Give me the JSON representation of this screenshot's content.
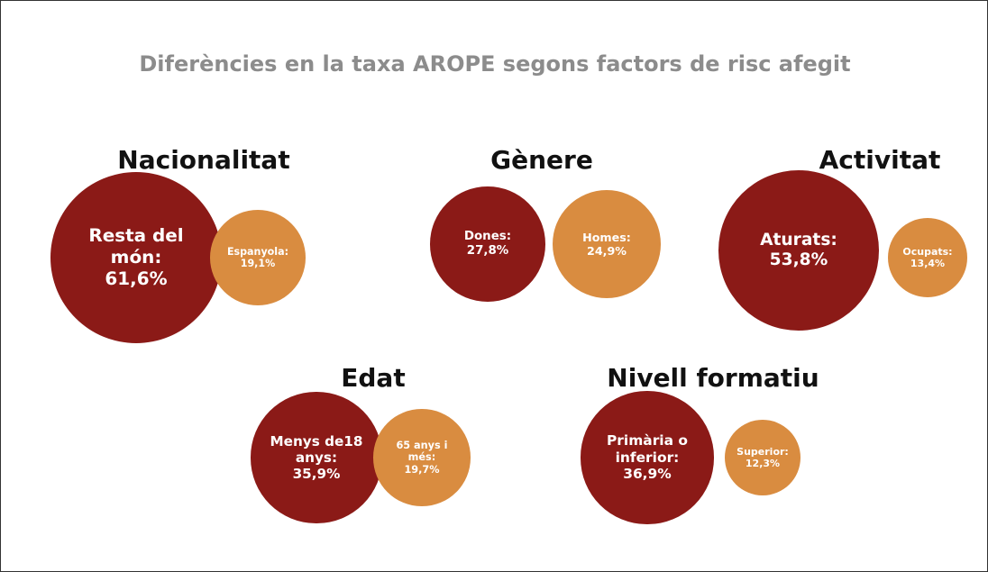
{
  "title": "Diferències en la taxa AROPE segons factors de risc afegit",
  "chart_data": [
    {
      "type": "bubble",
      "title": "Nacionalitat",
      "categories": [
        "Resta del món:",
        "Espanyola:"
      ],
      "values": [
        61.6,
        19.1
      ],
      "value_labels": [
        "61,6%",
        "19,1%"
      ],
      "colors": [
        "#8b1a17",
        "#d98c40"
      ]
    },
    {
      "type": "bubble",
      "title": "Gènere",
      "categories": [
        "Dones:",
        "Homes:"
      ],
      "values": [
        27.8,
        24.9
      ],
      "value_labels": [
        "27,8%",
        "24,9%"
      ],
      "colors": [
        "#8b1a17",
        "#d98c40"
      ]
    },
    {
      "type": "bubble",
      "title": "Activitat",
      "categories": [
        "Aturats:",
        "Ocupats:"
      ],
      "values": [
        53.8,
        13.4
      ],
      "value_labels": [
        "53,8%",
        "13,4%"
      ],
      "colors": [
        "#8b1a17",
        "#d98c40"
      ]
    },
    {
      "type": "bubble",
      "title": "Edat",
      "categories": [
        "Menys de18 anys:",
        "65 anys i més:"
      ],
      "values": [
        35.9,
        19.7
      ],
      "value_labels": [
        "35,9%",
        "19,7%"
      ],
      "colors": [
        "#8b1a17",
        "#d98c40"
      ]
    },
    {
      "type": "bubble",
      "title": "Nivell formatiu",
      "categories": [
        "Primària o inferior:",
        "Superior:"
      ],
      "values": [
        36.9,
        12.3
      ],
      "value_labels": [
        "36,9%",
        "12,3%"
      ],
      "colors": [
        "#8b1a17",
        "#d98c40"
      ]
    }
  ]
}
